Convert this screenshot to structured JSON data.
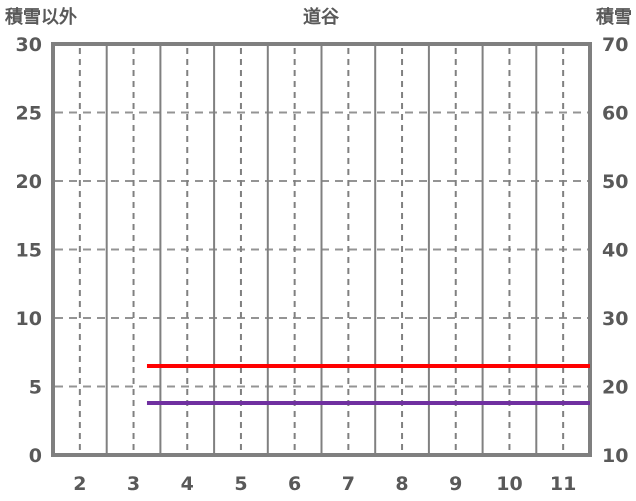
{
  "header": {
    "left_axis_title": "積雪以外",
    "chart_title": "道谷",
    "right_axis_title": "積雪"
  },
  "style": {
    "frame_color": "#7F7F7F",
    "vertical_gridline_color": "#808080",
    "horizontal_gridline_color": "#949494",
    "text_color": "#595959",
    "background": "#FFFFFF"
  },
  "chart_data": {
    "type": "line",
    "title": "道谷",
    "legend": "none",
    "grid": true,
    "x_axis": {
      "min": 1.5,
      "max": 11.5,
      "tick_values": [
        2,
        3,
        4,
        5,
        6,
        7,
        8,
        9,
        10,
        11
      ],
      "tick_labels": [
        "2",
        "3",
        "4",
        "5",
        "6",
        "7",
        "8",
        "9",
        "10",
        "11"
      ],
      "dashed_gridlines_at": [
        2,
        3,
        4,
        5,
        6,
        7,
        8,
        9,
        10,
        11
      ],
      "solid_gridlines_at": [
        2.5,
        3.5,
        4.5,
        5.5,
        6.5,
        7.5,
        8.5,
        9.5,
        10.5
      ]
    },
    "left_axis": {
      "title": "積雪以外",
      "min": 0,
      "max": 30,
      "tick_values": [
        0,
        5,
        10,
        15,
        20,
        25,
        30
      ],
      "tick_labels": [
        "0",
        "5",
        "10",
        "15",
        "20",
        "25",
        "30"
      ]
    },
    "right_axis": {
      "title": "積雪",
      "min": 10,
      "max": 70,
      "tick_values": [
        10,
        20,
        30,
        40,
        50,
        60,
        70
      ],
      "tick_labels": [
        "10",
        "20",
        "30",
        "40",
        "50",
        "60",
        "70"
      ]
    },
    "horizontal_dashed_gridlines_left_values": [
      5,
      10,
      15,
      20,
      25
    ],
    "series": [
      {
        "name": "series-red",
        "color": "#FF0000",
        "axis": "left",
        "x_start": 3.25,
        "x_end": 11.5,
        "constant_value": 6.5
      },
      {
        "name": "series-purple",
        "color": "#7030A0",
        "axis": "left",
        "x_start": 3.25,
        "x_end": 11.5,
        "constant_value": 3.8
      }
    ]
  }
}
